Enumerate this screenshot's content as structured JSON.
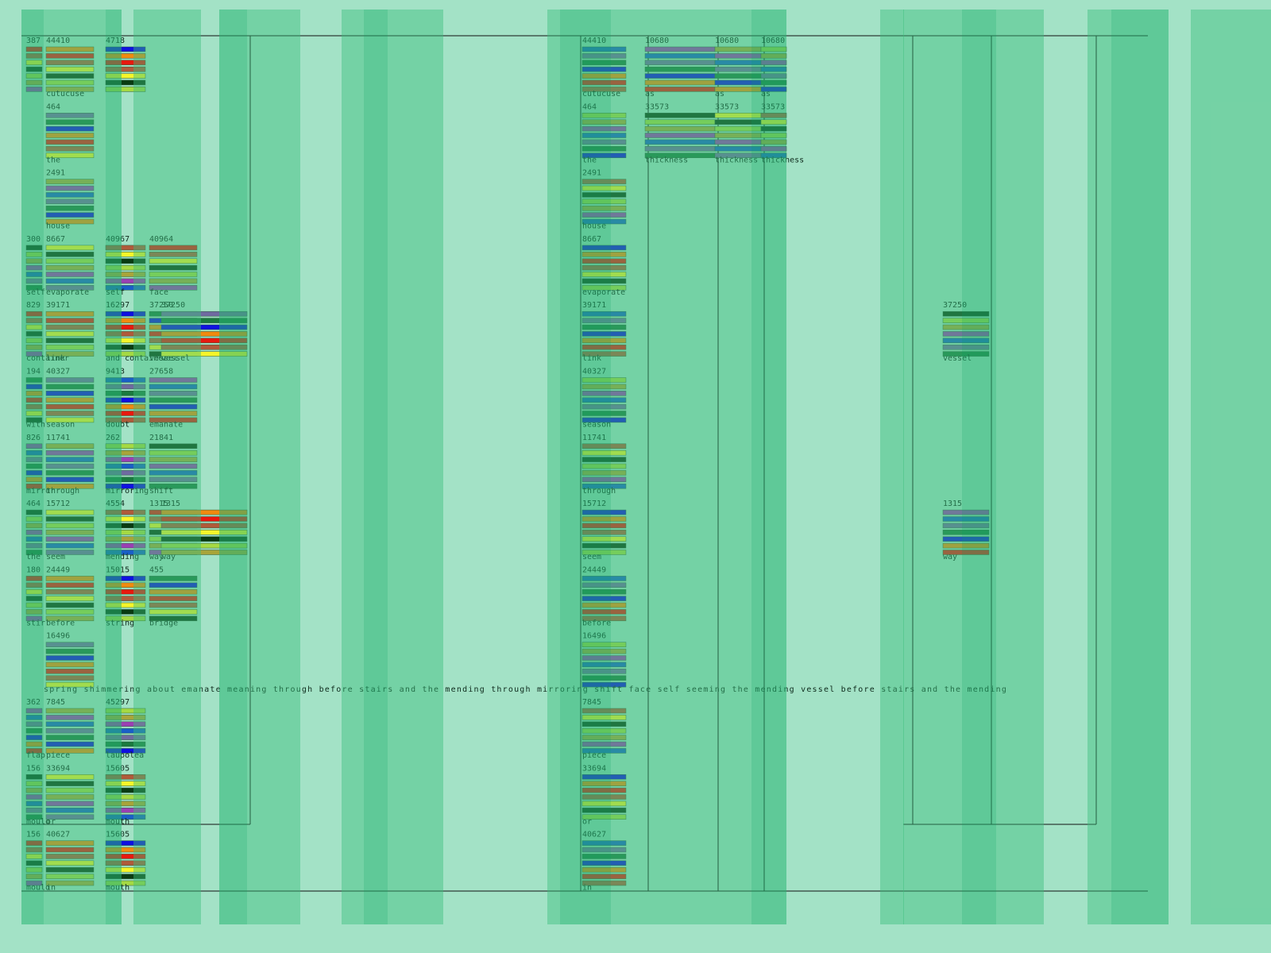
{
  "grid": {
    "columns": [
      {
        "cells": [
          {
            "value": "387"
          },
          null,
          null,
          {
            "value": "300",
            "label": "self"
          },
          {
            "value": "829",
            "label": "container"
          },
          {
            "value": "194",
            "label": "with"
          },
          {
            "value": "826",
            "label": "mirror"
          },
          {
            "value": "464",
            "label": "the"
          },
          {
            "value": "180",
            "label": "stir"
          },
          null,
          {
            "value": "362",
            "label": "flap"
          },
          {
            "value": "156",
            "label": "mould"
          },
          {
            "value": "156",
            "label": "mould"
          }
        ]
      },
      {
        "cells": [
          {
            "value": "44410",
            "label": "cutucuse"
          },
          {
            "value": "464",
            "label": "the"
          },
          {
            "value": "2491",
            "label": "house"
          },
          {
            "value": "8667",
            "label": "evaporate"
          },
          {
            "value": "39171",
            "label": "link"
          },
          {
            "value": "40327",
            "label": "season"
          },
          {
            "value": "11741",
            "label": "through"
          },
          {
            "value": "15712",
            "label": "seem"
          },
          {
            "value": "24449",
            "label": "before"
          },
          {
            "value": "16496"
          },
          {
            "value": "7845",
            "label": "piece"
          },
          {
            "value": "33694",
            "label": "or"
          },
          {
            "value": "40627",
            "label": "in"
          }
        ]
      },
      {
        "cells": [
          {
            "value": "4718"
          },
          null,
          null,
          {
            "value": "40967",
            "label": "self"
          },
          {
            "value": "16297",
            "label": "and container"
          },
          {
            "value": "9413",
            "label": "doubt"
          },
          {
            "value": "262",
            "label": "mirroring"
          },
          {
            "value": "4554",
            "label": "mending"
          },
          {
            "value": "15015",
            "label": "string"
          },
          null,
          {
            "value": "45297",
            "label": "laupolea"
          },
          {
            "value": "15605",
            "label": "mouth"
          },
          {
            "value": "15605",
            "label": "mouth"
          }
        ]
      },
      {
        "cells": [
          null,
          null,
          null,
          {
            "value": "40964",
            "label": "face"
          },
          {
            "value": "37250",
            "label": "vessel"
          },
          {
            "value": "27658",
            "label": "emanate"
          },
          {
            "value": "21841",
            "label": "shift"
          },
          {
            "value": "1315",
            "label": "way"
          },
          {
            "value": "455",
            "label": "bridge"
          },
          null,
          null,
          null,
          null
        ]
      },
      {
        "cells": [
          null,
          null,
          null,
          null,
          {
            "value": "37250",
            "label": "vessel"
          },
          null,
          null,
          {
            "value": "1315",
            "label": "way"
          },
          null,
          null,
          null,
          null,
          null
        ]
      },
      {
        "cells": [
          {
            "value": "44410",
            "label": "cutucuse"
          },
          {
            "value": "464",
            "label": "the"
          },
          {
            "value": "2491",
            "label": "house"
          },
          {
            "value": "8667",
            "label": "evaporate"
          },
          {
            "value": "39171",
            "label": "link"
          },
          {
            "value": "40327",
            "label": "season"
          },
          {
            "value": "11741",
            "label": "through"
          },
          {
            "value": "15712",
            "label": "seem"
          },
          {
            "value": "24449",
            "label": "before"
          },
          {
            "value": "16496"
          },
          {
            "value": "7845",
            "label": "piece"
          },
          {
            "value": "33694",
            "label": "or"
          },
          {
            "value": "40627",
            "label": "in"
          }
        ]
      },
      {
        "cells": [
          {
            "value": "10680",
            "label": "as"
          },
          {
            "value": "33573",
            "label": "thickness"
          }
        ]
      },
      {
        "cells": [
          {
            "value": "10680",
            "label": "as"
          },
          {
            "value": "33573",
            "label": "thickness"
          }
        ]
      },
      {
        "cells": [
          {
            "value": "10680",
            "label": "as"
          },
          {
            "value": "33573",
            "label": "thickness"
          }
        ]
      },
      {
        "cells": [
          null,
          null,
          null,
          null,
          {
            "value": "37250",
            "label": "vessel"
          },
          null,
          null,
          {
            "value": "1315",
            "label": "way"
          }
        ]
      }
    ]
  },
  "ticker": "spring shimmering about emanate meaning through before stairs and the mending through mirroring shift face self seeming the mending vessel before stairs and the mending"
}
